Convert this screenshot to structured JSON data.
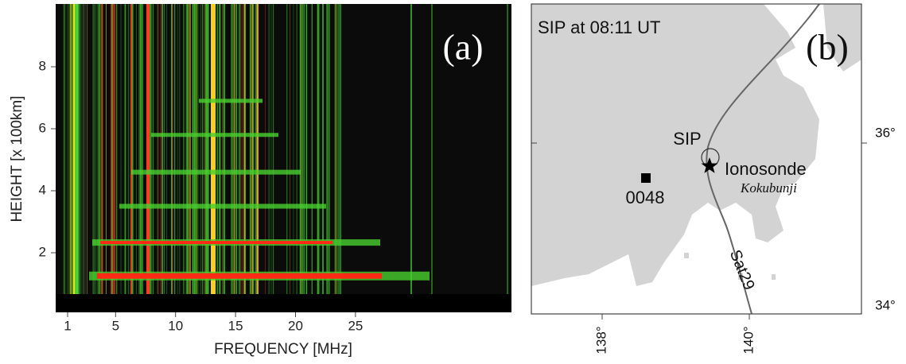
{
  "panel_a": {
    "label": "(a)",
    "x_axis": {
      "title": "FREQUENCY [MHz]",
      "ticks": [
        1,
        5,
        10,
        15,
        20,
        25
      ]
    },
    "y_axis": {
      "title": "HEIGHT [x 100km]",
      "ticks": [
        2,
        4,
        6,
        8
      ]
    }
  },
  "panel_b": {
    "label": "(b)",
    "title": "SIP at 08:11 UT",
    "lon_ticks": [
      "138°",
      "140°"
    ],
    "lat_ticks": [
      "36°",
      "34°"
    ],
    "annotations": {
      "sip": "SIP",
      "ionosonde": "Ionosonde",
      "station": "Kokubunji",
      "receiver": "0048",
      "satellite": "Sat29"
    }
  }
}
